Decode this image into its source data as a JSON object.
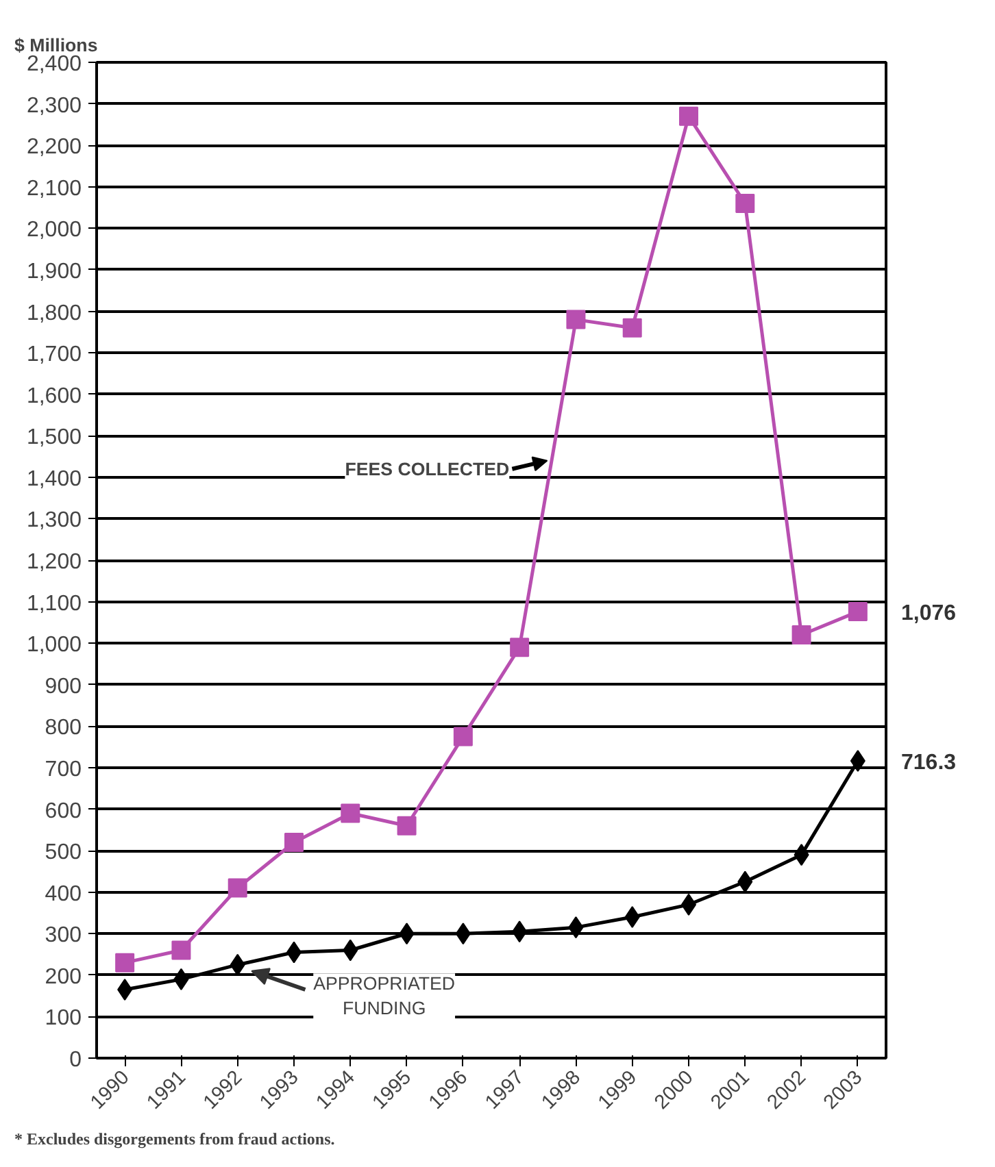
{
  "chart_data": {
    "type": "line",
    "ylabel": "$ Millions",
    "categories": [
      "1990",
      "1991",
      "1992",
      "1993",
      "1994",
      "1995",
      "1996",
      "1997",
      "1998",
      "1999",
      "2000",
      "2001",
      "2002",
      "2003"
    ],
    "series": [
      {
        "name": "FEES COLLECTED",
        "color": "#b84fb0",
        "marker": "square",
        "values": [
          230,
          260,
          410,
          520,
          590,
          560,
          775,
          990,
          1780,
          1760,
          2270,
          2060,
          1020,
          1076
        ],
        "value_labels": [
          null,
          null,
          null,
          null,
          null,
          null,
          null,
          null,
          null,
          null,
          null,
          null,
          null,
          "1,076"
        ]
      },
      {
        "name": "APPROPRIATED FUNDING",
        "color": "#000000",
        "marker": "diamond",
        "values": [
          165,
          190,
          225,
          255,
          260,
          300,
          300,
          305,
          315,
          340,
          370,
          425,
          490,
          716.3
        ],
        "value_labels": [
          null,
          null,
          null,
          null,
          null,
          null,
          null,
          null,
          null,
          null,
          null,
          null,
          null,
          "716.3"
        ]
      }
    ],
    "ylim": [
      0,
      2400
    ],
    "yticks": [
      0,
      {
        "value": 100,
        "label": "100"
      },
      {
        "value": 200,
        "label": "200"
      },
      {
        "value": 300,
        "label": "300"
      },
      {
        "value": 400,
        "label": "400"
      },
      {
        "value": 500,
        "label": "500"
      },
      {
        "value": 600,
        "label": "600"
      },
      {
        "value": 700,
        "label": "700"
      },
      {
        "value": 800,
        "label": "800"
      },
      {
        "value": 900,
        "label": "900"
      },
      {
        "value": 1000,
        "label": "1,000"
      },
      {
        "value": 1100,
        "label": "1,100"
      },
      {
        "value": 1200,
        "label": "1,200"
      },
      {
        "value": 1300,
        "label": "1,300"
      },
      {
        "value": 1400,
        "label": "1,400"
      },
      {
        "value": 1500,
        "label": "1,500"
      },
      {
        "value": 1600,
        "label": "1,600"
      },
      {
        "value": 1700,
        "label": "1,700"
      },
      {
        "value": 1800,
        "label": "1,800"
      },
      {
        "value": 1900,
        "label": "1,900"
      },
      {
        "value": 2000,
        "label": "2,000"
      },
      {
        "value": 2100,
        "label": "2,100"
      },
      {
        "value": 2200,
        "label": "2,200"
      },
      {
        "value": 2300,
        "label": "2,300"
      },
      {
        "value": 2400,
        "label": "2,400"
      }
    ],
    "grid": "y",
    "annotations": [
      "* Excludes disgorgements from fraud actions."
    ]
  }
}
